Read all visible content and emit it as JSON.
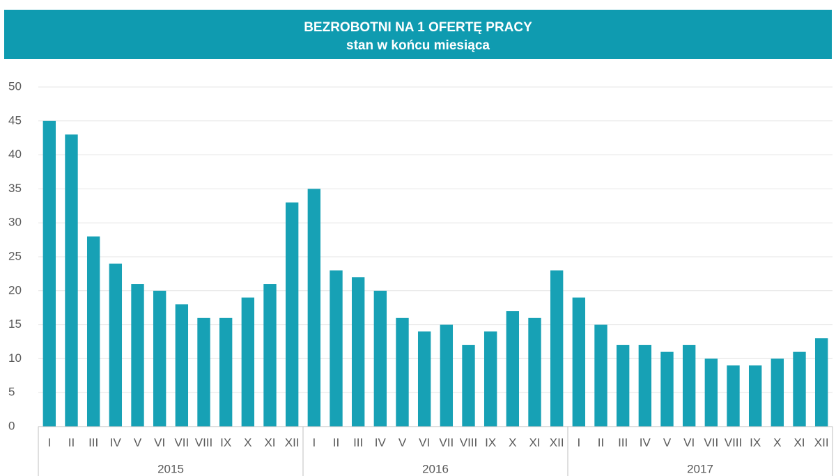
{
  "chart_data": {
    "type": "bar",
    "title": "BEZROBOTNI NA 1 OFERTĘ PRACY",
    "subtitle": "stan w końcu miesiąca",
    "categories": [
      "I",
      "II",
      "III",
      "IV",
      "V",
      "VI",
      "VII",
      "VIII",
      "IX",
      "X",
      "XI",
      "XII",
      "I",
      "II",
      "III",
      "IV",
      "V",
      "VI",
      "VII",
      "VIII",
      "IX",
      "X",
      "XI",
      "XII",
      "I",
      "II",
      "III",
      "IV",
      "V",
      "VI",
      "VII",
      "VIII",
      "IX",
      "X",
      "XI",
      "XII"
    ],
    "groups": [
      "2015",
      "2016",
      "2017"
    ],
    "values": [
      45,
      43,
      28,
      24,
      21,
      20,
      18,
      16,
      16,
      19,
      21,
      33,
      35,
      23,
      22,
      20,
      16,
      14,
      15,
      12,
      14,
      17,
      16,
      23,
      19,
      15,
      12,
      12,
      11,
      12,
      10,
      9,
      9,
      10,
      11,
      13
    ],
    "color": "#17a1b5",
    "ylim": [
      0,
      50
    ],
    "yticks": [
      0,
      5,
      10,
      15,
      20,
      25,
      30,
      35,
      40,
      45,
      50
    ],
    "grid": true
  }
}
